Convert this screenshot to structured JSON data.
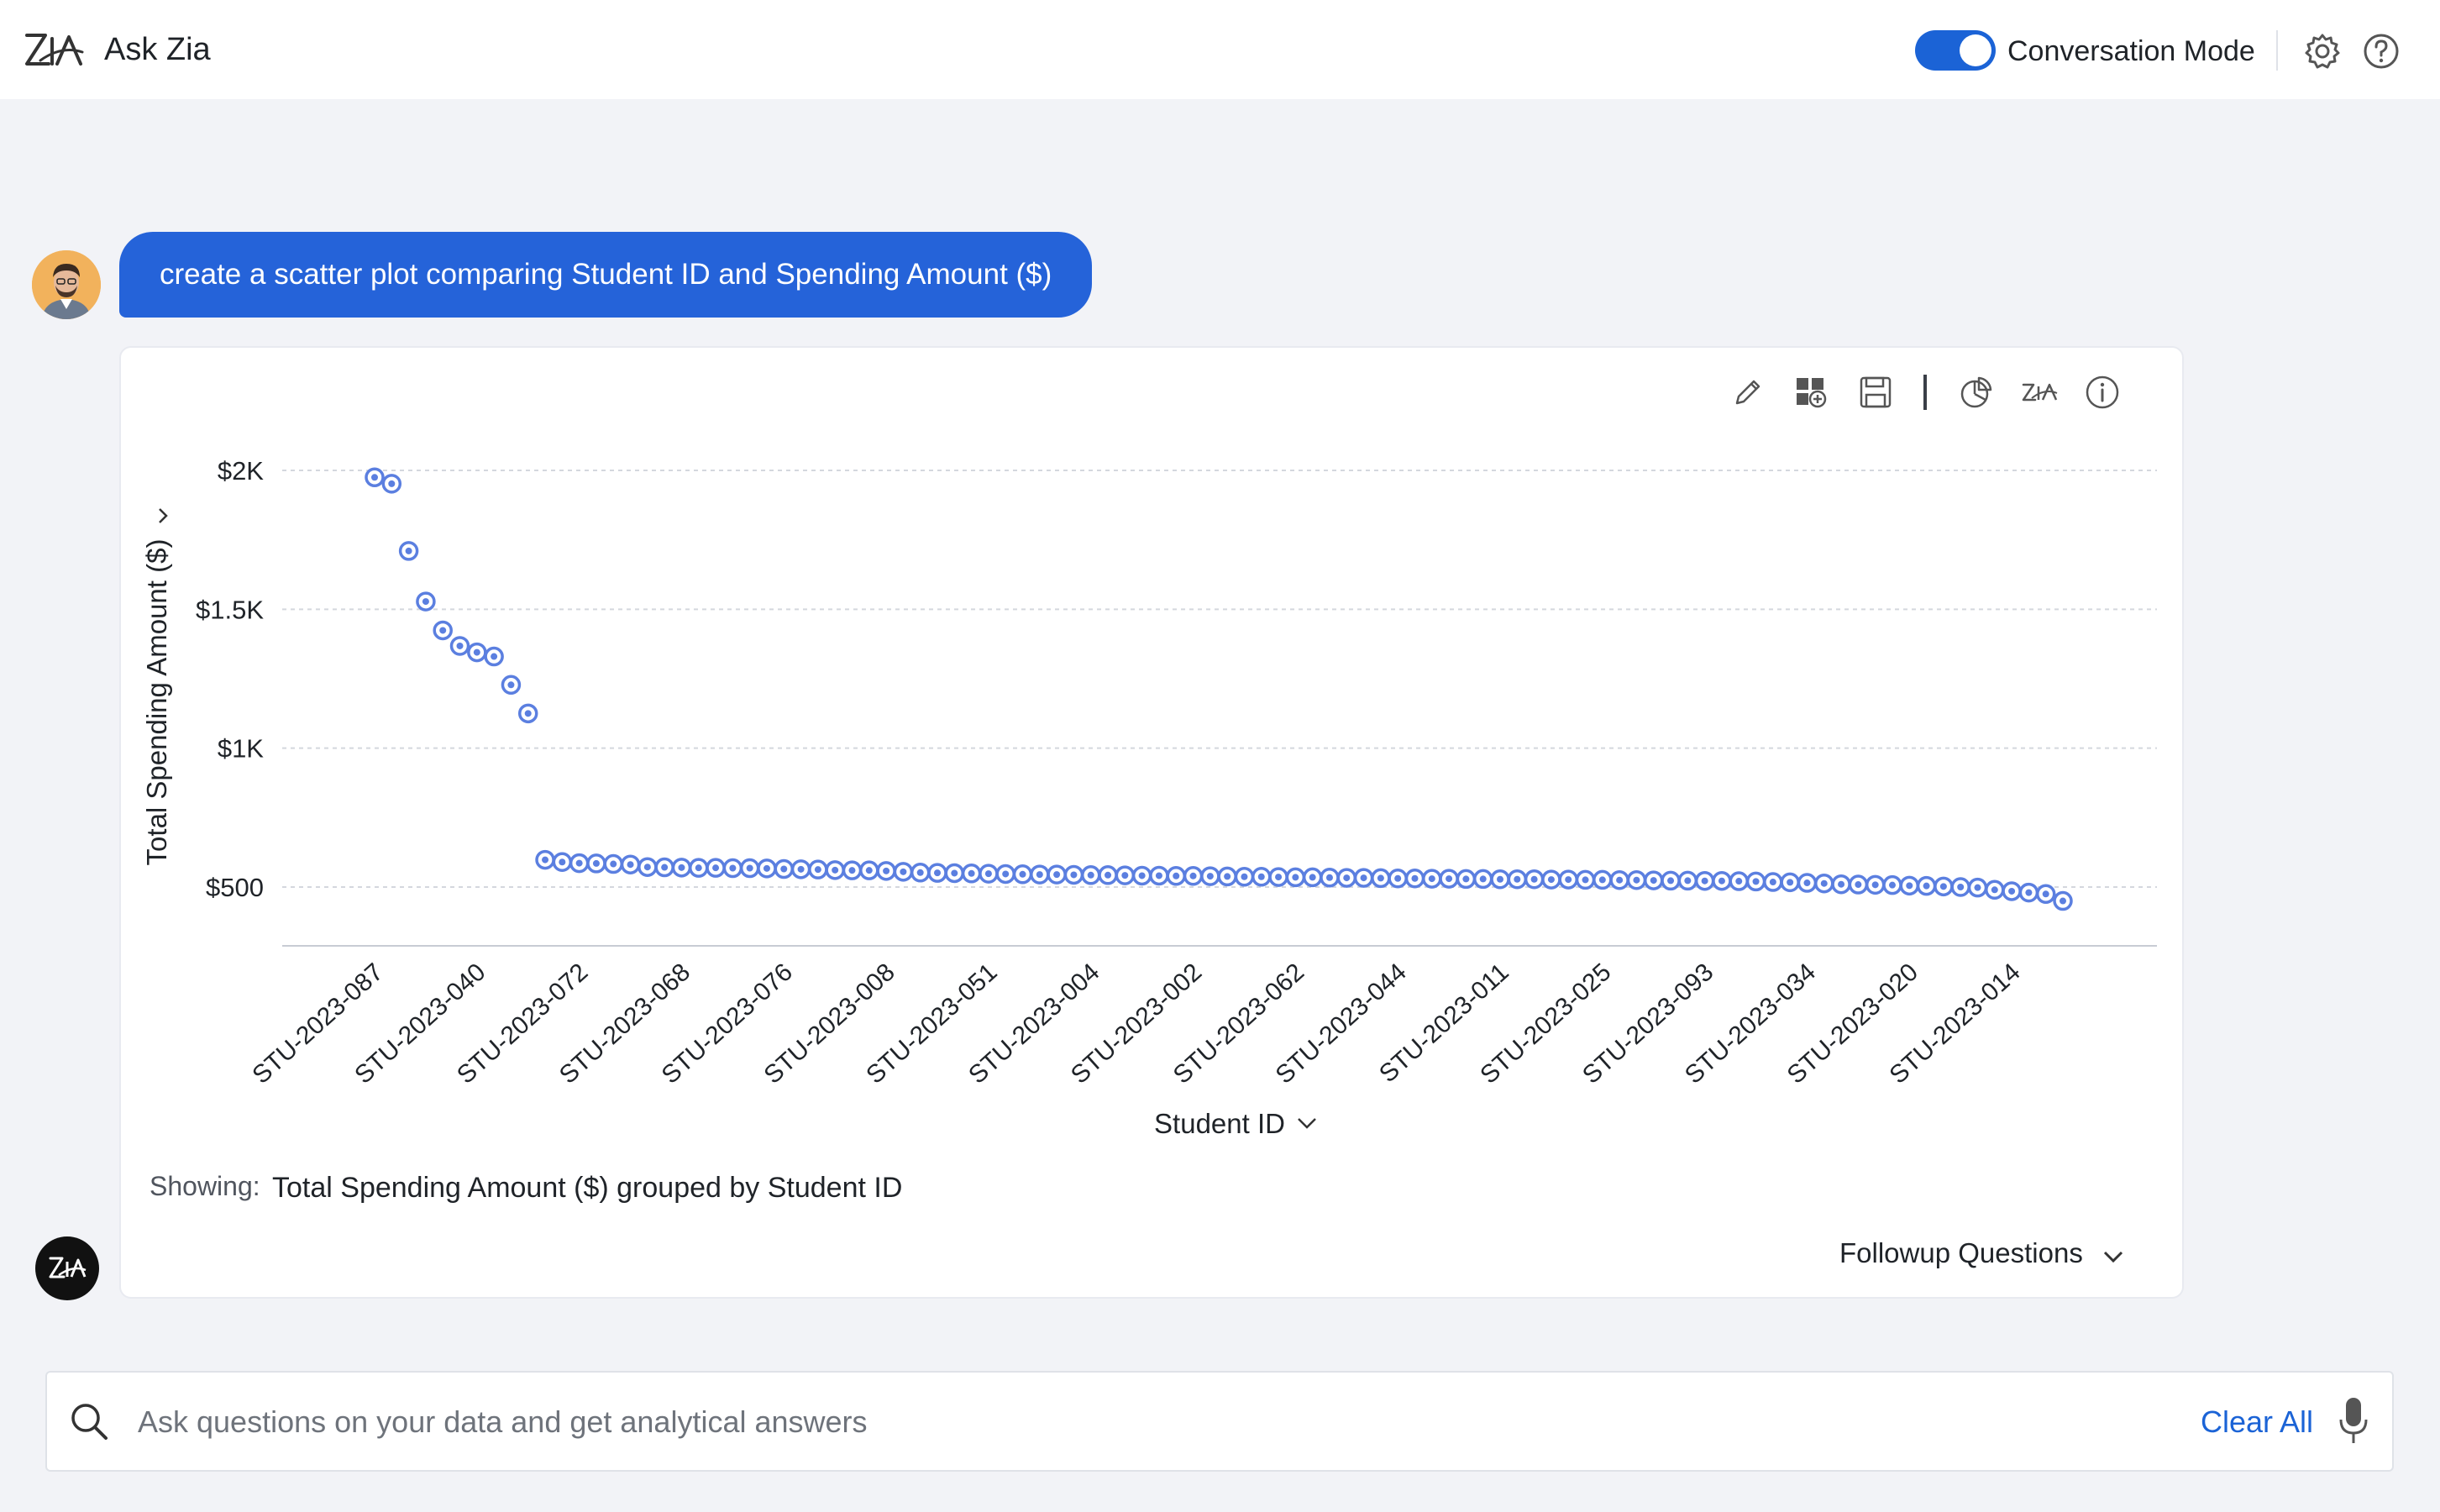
{
  "header": {
    "app_title": "Ask Zia",
    "conversation_mode_label": "Conversation Mode",
    "conversation_mode_on": true
  },
  "query": {
    "text": "create a scatter plot comparing Student ID and Spending Amount ($)"
  },
  "result": {
    "showing_label": "Showing:",
    "showing_text": "Total Spending Amount ($) grouped by Student ID",
    "followup_label": "Followup Questions"
  },
  "search": {
    "placeholder": "Ask questions on your data and get analytical answers",
    "clear_label": "Clear All"
  },
  "colors": {
    "accent": "#1b63d6",
    "bubble": "#2563d9",
    "point": "#5b7fe0"
  },
  "icons": [
    "zia-logo-icon",
    "gear-icon",
    "help-icon",
    "edit-icon",
    "add-to-dashboard-icon",
    "save-icon",
    "chart-type-icon",
    "zia-icon",
    "info-icon",
    "chevron-down-icon",
    "search-icon",
    "microphone-icon"
  ],
  "chart_data": {
    "type": "scatter",
    "title": "",
    "xlabel": "Student ID",
    "ylabel": "Total Spending Amount ($)",
    "ylim": [
      300,
      2000
    ],
    "y_ticks": [
      500,
      1000,
      1500,
      2000
    ],
    "y_tick_labels": [
      "$500",
      "$1K",
      "$1.5K",
      "$2K"
    ],
    "point_count": 100,
    "x_tick_labels": [
      "STU-2023-087",
      "STU-2023-040",
      "STU-2023-072",
      "STU-2023-068",
      "STU-2023-076",
      "STU-2023-008",
      "STU-2023-051",
      "STU-2023-004",
      "STU-2023-002",
      "STU-2023-062",
      "STU-2023-044",
      "STU-2023-011",
      "STU-2023-025",
      "STU-2023-093",
      "STU-2023-034",
      "STU-2023-020",
      "STU-2023-014"
    ],
    "x_tick_every": 6,
    "values": [
      1975,
      1952,
      1710,
      1528,
      1424,
      1368,
      1345,
      1330,
      1228,
      1125,
      598,
      590,
      586,
      585,
      583,
      581,
      572,
      571,
      570,
      569,
      569,
      568,
      568,
      567,
      565,
      564,
      563,
      561,
      560,
      560,
      558,
      555,
      552,
      551,
      550,
      549,
      548,
      547,
      546,
      545,
      545,
      544,
      543,
      543,
      542,
      541,
      541,
      540,
      540,
      539,
      538,
      537,
      537,
      536,
      535,
      535,
      534,
      533,
      533,
      532,
      531,
      531,
      530,
      530,
      529,
      529,
      528,
      528,
      528,
      527,
      527,
      526,
      526,
      525,
      525,
      524,
      523,
      523,
      522,
      522,
      521,
      520,
      518,
      517,
      515,
      513,
      510,
      509,
      508,
      507,
      505,
      504,
      502,
      500,
      498,
      490,
      485,
      480,
      475,
      450
    ]
  }
}
